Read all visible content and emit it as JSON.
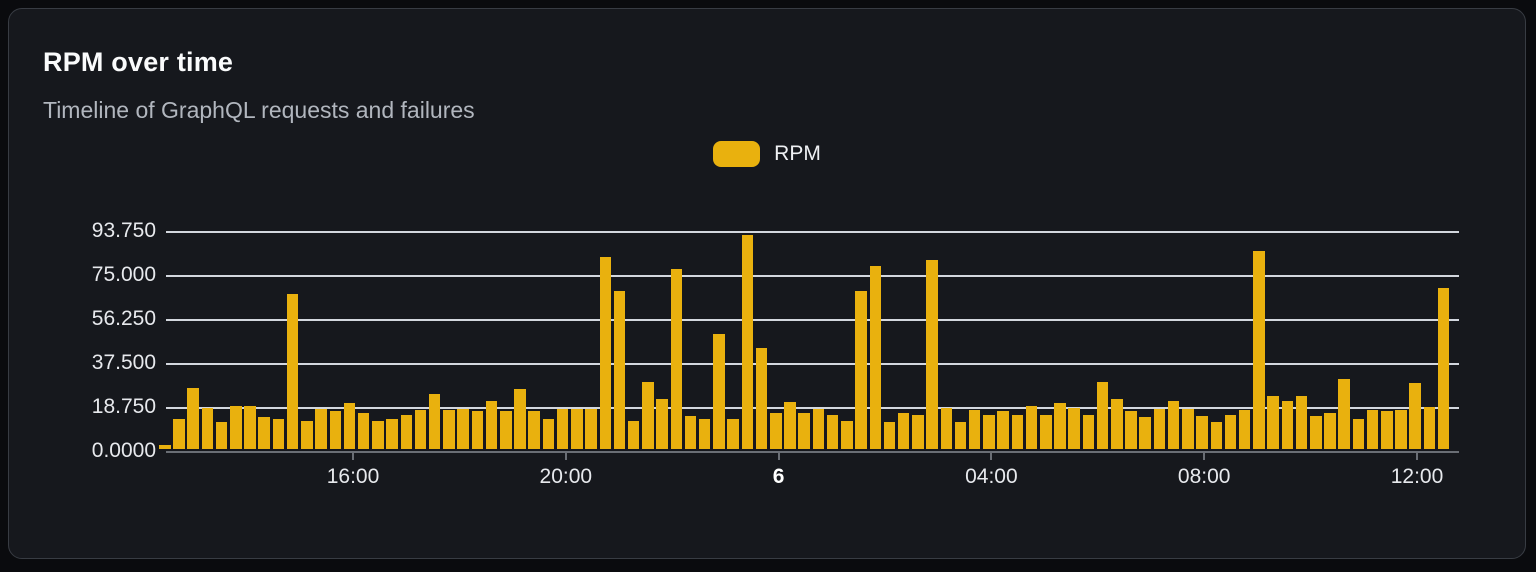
{
  "card": {
    "title": "RPM over time",
    "subtitle": "Timeline of GraphQL requests and failures"
  },
  "legend": {
    "label": "RPM",
    "color": "#e9b10e"
  },
  "chart_data": {
    "type": "bar",
    "title": "RPM over time",
    "subtitle": "Timeline of GraphQL requests and failures",
    "grid": true,
    "legend_position": "top-center",
    "background_color": "#16181d",
    "bar_color": "#e9b10e",
    "ylim": [
      0,
      93.75
    ],
    "y_tick_labels": [
      "93.750",
      "75.000",
      "56.250",
      "37.500",
      "18.750",
      "0.0000"
    ],
    "x_tick_labels": [
      {
        "label": "16:00",
        "emphasis": false
      },
      {
        "label": "20:00",
        "emphasis": false
      },
      {
        "label": "6",
        "emphasis": true
      },
      {
        "label": "04:00",
        "emphasis": false
      },
      {
        "label": "08:00",
        "emphasis": false
      },
      {
        "label": "12:00",
        "emphasis": false
      }
    ],
    "series": [
      {
        "name": "RPM",
        "color": "#e9b10e",
        "values": [
          1.8,
          13,
          26,
          17.5,
          11.5,
          18.5,
          18.5,
          13.5,
          13,
          66,
          12,
          17,
          16,
          19.5,
          15.5,
          12,
          13,
          14.5,
          16.5,
          23.5,
          16.5,
          17,
          16,
          20.5,
          16,
          25.5,
          16,
          13,
          17,
          17,
          17,
          82,
          67.5,
          12,
          28.5,
          21.5,
          76.5,
          14,
          13,
          49,
          13,
          91.3,
          43,
          15.5,
          20,
          15.5,
          17,
          14.5,
          12,
          67.5,
          78,
          11.5,
          15.5,
          14.5,
          80.5,
          17.5,
          11.5,
          16.5,
          14.5,
          16,
          14.5,
          18.5,
          14.5,
          19.5,
          17.5,
          14.5,
          28.5,
          21.5,
          16,
          13.5,
          17,
          20.5,
          17,
          14,
          11.5,
          14.5,
          16.5,
          84.5,
          22.5,
          20.5,
          22.5,
          14,
          15.5,
          30,
          13,
          16.5,
          16,
          16.5,
          28,
          18,
          68.5
        ]
      }
    ]
  }
}
